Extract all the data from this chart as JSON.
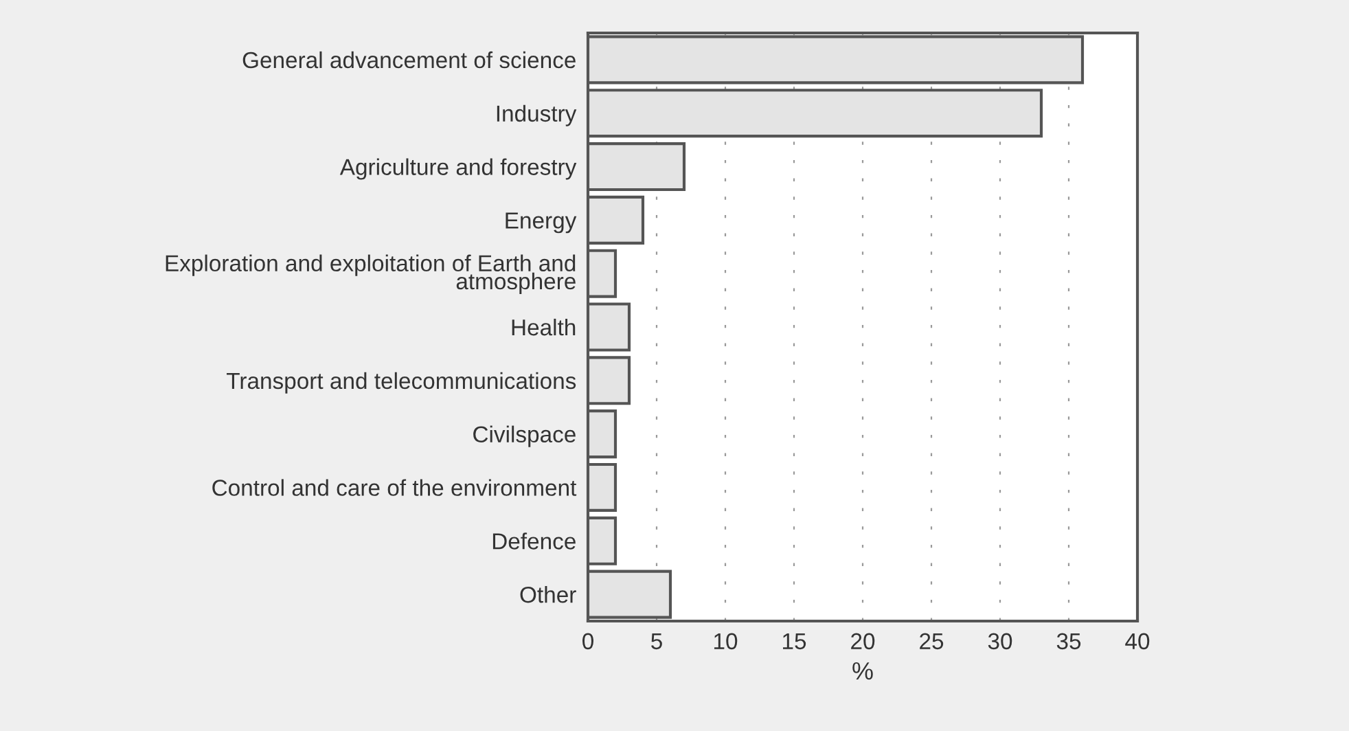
{
  "chart_data": {
    "type": "bar",
    "orientation": "horizontal",
    "xlabel": "%",
    "categories": [
      "General advancement of science",
      "Industry",
      "Agriculture and forestry",
      "Energy",
      "Exploration and exploitation of Earth and\natmosphere",
      "Health",
      "Transport and telecommunications",
      "Civilspace",
      "Control and care of the environment",
      "Defence",
      "Other"
    ],
    "values": [
      36,
      33,
      7,
      4,
      2,
      3,
      3,
      2,
      2,
      2,
      6
    ],
    "color": "#e4e4e4",
    "xlim": [
      0,
      40
    ],
    "xticks": [
      0,
      5,
      10,
      15,
      20,
      25,
      30,
      35,
      40
    ],
    "grid": "x",
    "line_style": "dashed"
  }
}
